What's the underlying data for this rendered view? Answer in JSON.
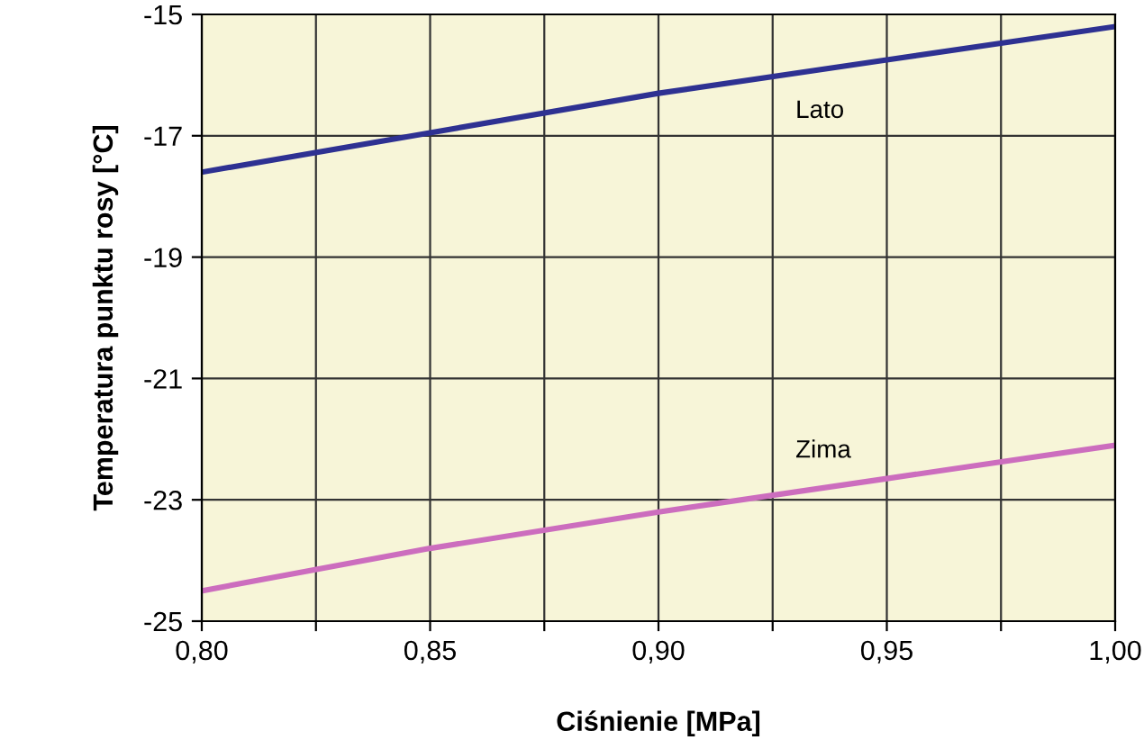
{
  "chart_data": {
    "type": "line",
    "xlabel": "Ciśnienie [MPa]",
    "ylabel": "Temperatura punktu rosy [°C]",
    "x": [
      0.8,
      0.85,
      0.9,
      0.95,
      1.0
    ],
    "series": [
      {
        "name": "Lato",
        "color": "#2e3192",
        "values": [
          -17.6,
          -16.95,
          -16.3,
          -15.75,
          -15.2
        ]
      },
      {
        "name": "Zima",
        "color": "#cc6dbe",
        "values": [
          -24.5,
          -23.8,
          -23.2,
          -22.65,
          -22.1
        ]
      }
    ],
    "xlim": [
      0.8,
      1.0
    ],
    "xticks": [
      {
        "value": 0.8,
        "label": "0,80"
      },
      {
        "value": 0.825,
        "label": null
      },
      {
        "value": 0.85,
        "label": "0,85"
      },
      {
        "value": 0.875,
        "label": null
      },
      {
        "value": 0.9,
        "label": "0,90"
      },
      {
        "value": 0.925,
        "label": null
      },
      {
        "value": 0.95,
        "label": "0,95"
      },
      {
        "value": 0.975,
        "label": null
      },
      {
        "value": 1.0,
        "label": "1,00"
      }
    ],
    "ylim": [
      -25,
      -15
    ],
    "yticks": [
      -25,
      -23,
      -21,
      -19,
      -17,
      -15
    ],
    "grid": true,
    "legend": false,
    "marker": "none",
    "line_style": "solid"
  }
}
